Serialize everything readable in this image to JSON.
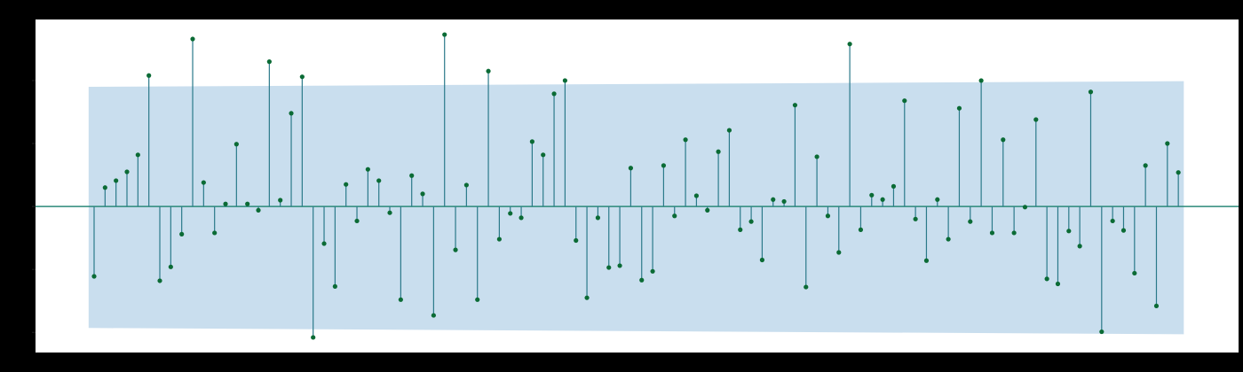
{
  "chart_data": {
    "type": "stem",
    "x": [
      1,
      2,
      3,
      4,
      5,
      6,
      7,
      8,
      9,
      10,
      11,
      12,
      13,
      14,
      15,
      16,
      17,
      18,
      19,
      20,
      21,
      22,
      23,
      24,
      25,
      26,
      27,
      28,
      29,
      30,
      31,
      32,
      33,
      34,
      35,
      36,
      37,
      38,
      39,
      40,
      41,
      42,
      43,
      44,
      45,
      46,
      47,
      48,
      49,
      50,
      51,
      52,
      53,
      54,
      55,
      56,
      57,
      58,
      59,
      60,
      61,
      62,
      63,
      64,
      65,
      66,
      67,
      68,
      69,
      70,
      71,
      72,
      73,
      74,
      75,
      76,
      77,
      78,
      79,
      80,
      81,
      82,
      83,
      84,
      85,
      86,
      87,
      88,
      89,
      90,
      91,
      92,
      93,
      94,
      95,
      96,
      97,
      98,
      99,
      100
    ],
    "values": [
      -0.111,
      0.03,
      0.041,
      0.055,
      0.082,
      0.208,
      -0.118,
      -0.096,
      -0.044,
      0.266,
      0.038,
      -0.042,
      0.004,
      0.099,
      0.004,
      -0.006,
      0.23,
      0.01,
      0.148,
      0.206,
      -0.208,
      -0.059,
      -0.127,
      0.035,
      -0.023,
      0.059,
      0.041,
      -0.01,
      -0.148,
      0.049,
      0.02,
      -0.173,
      0.273,
      -0.069,
      0.034,
      -0.148,
      0.215,
      -0.052,
      -0.011,
      -0.018,
      0.103,
      0.082,
      0.179,
      0.2,
      -0.054,
      -0.145,
      -0.018,
      -0.097,
      -0.094,
      0.061,
      -0.117,
      -0.103,
      0.065,
      -0.015,
      0.106,
      0.017,
      -0.006,
      0.087,
      0.121,
      -0.037,
      -0.024,
      -0.085,
      0.011,
      0.008,
      0.161,
      -0.128,
      0.079,
      -0.015,
      -0.073,
      0.258,
      -0.037,
      0.018,
      0.011,
      0.032,
      0.168,
      -0.02,
      -0.086,
      0.011,
      -0.052,
      0.156,
      -0.024,
      0.2,
      -0.042,
      0.106,
      -0.042,
      -0.001,
      0.138,
      -0.115,
      -0.123,
      -0.039,
      -0.063,
      0.182,
      -0.199,
      -0.023,
      -0.038,
      -0.106,
      0.065,
      -0.158,
      0.1,
      0.054
    ],
    "stem_color": "#2b7a8a",
    "marker_color": "#0b6b35",
    "baseline_color": "#2b8a7a",
    "band": {
      "x": [
        0.5,
        100.5
      ],
      "upper": [
        0.19,
        0.199
      ],
      "lower": [
        -0.193,
        -0.203
      ],
      "color": "#c6dced"
    },
    "xlim": [
      -4.35,
      105.5
    ],
    "ylim": [
      -0.232,
      0.297
    ],
    "yticks": [
      -0.2,
      -0.1,
      0,
      0.1,
      0.2
    ]
  }
}
